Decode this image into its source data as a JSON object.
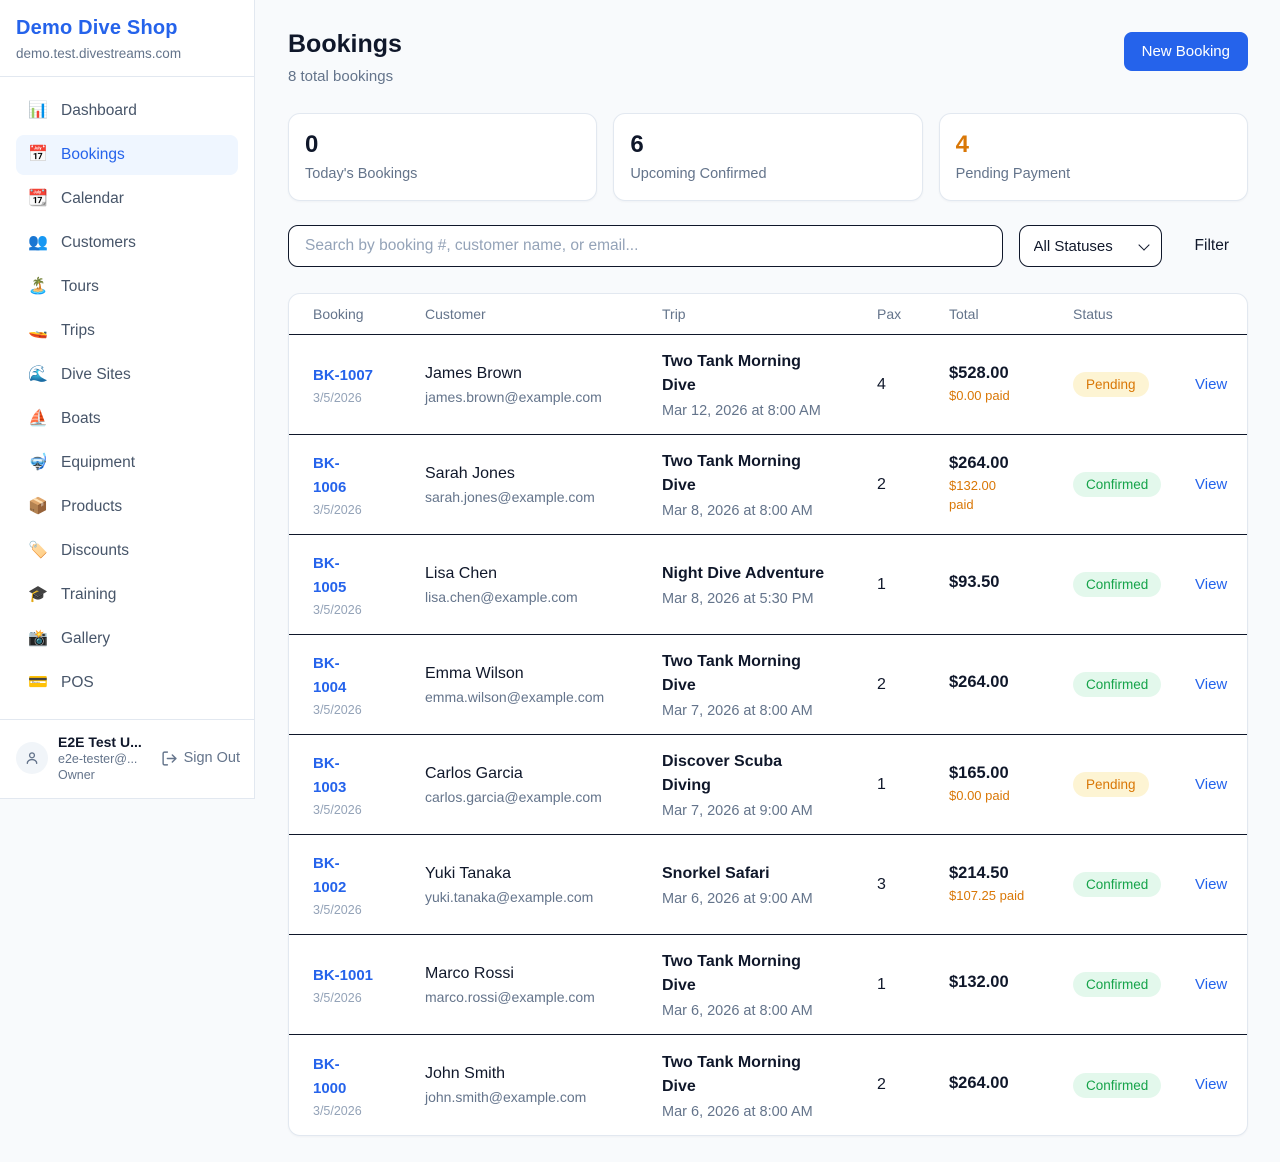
{
  "colors": {
    "accent": "#2563eb",
    "page_bg": "#f8fafc",
    "panel_bg": "#ffffff",
    "border_light": "#e2e8f0",
    "border_dark": "#0f172a",
    "text_dark": "#0f172a",
    "text_gray": "#64748b",
    "text_faint": "#94a3b8",
    "nav_text": "#475569",
    "active_bg": "#eff6ff",
    "orange": "#d97706",
    "pending_bg": "#fdf4d3",
    "green": "#16a34a",
    "confirmed_bg": "#e3f8ec"
  },
  "sidebar": {
    "shop_name": "Demo Dive Shop",
    "shop_domain": "demo.test.divestreams.com",
    "items": [
      {
        "label": "Dashboard",
        "icon": "bar-chart-icon",
        "glyph": "📊",
        "active": false
      },
      {
        "label": "Bookings",
        "icon": "calendar-date-icon",
        "glyph": "📅",
        "active": true
      },
      {
        "label": "Calendar",
        "icon": "calendar-icon",
        "glyph": "📆",
        "active": false
      },
      {
        "label": "Customers",
        "icon": "people-icon",
        "glyph": "👥",
        "active": false
      },
      {
        "label": "Tours",
        "icon": "island-icon",
        "glyph": "🏝️",
        "active": false
      },
      {
        "label": "Trips",
        "icon": "speedboat-icon",
        "glyph": "🚤",
        "active": false
      },
      {
        "label": "Dive Sites",
        "icon": "wave-icon",
        "glyph": "🌊",
        "active": false
      },
      {
        "label": "Boats",
        "icon": "sailboat-icon",
        "glyph": "⛵",
        "active": false
      },
      {
        "label": "Equipment",
        "icon": "diving-mask-icon",
        "glyph": "🤿",
        "active": false
      },
      {
        "label": "Products",
        "icon": "package-icon",
        "glyph": "📦",
        "active": false
      },
      {
        "label": "Discounts",
        "icon": "tag-icon",
        "glyph": "🏷️",
        "active": false
      },
      {
        "label": "Training",
        "icon": "graduation-cap-icon",
        "glyph": "🎓",
        "active": false
      },
      {
        "label": "Gallery",
        "icon": "camera-icon",
        "glyph": "📸",
        "active": false
      },
      {
        "label": "POS",
        "icon": "credit-card-icon",
        "glyph": "💳",
        "active": false
      }
    ],
    "user": {
      "name": "E2E Test U...",
      "email": "e2e-tester@...",
      "role": "Owner",
      "sign_out_label": "Sign Out"
    }
  },
  "header": {
    "title": "Bookings",
    "subtitle": "8 total bookings",
    "new_booking_label": "New Booking"
  },
  "stats": [
    {
      "value": "0",
      "label": "Today's Bookings"
    },
    {
      "value": "6",
      "label": "Upcoming Confirmed"
    },
    {
      "value": "4",
      "label": "Pending Payment",
      "value_color": "#d97706"
    }
  ],
  "controls": {
    "search_placeholder": "Search by booking #, customer name, or email...",
    "status_filter_value": "All Statuses",
    "filter_label": "Filter"
  },
  "table": {
    "columns": [
      "Booking",
      "Customer",
      "Trip",
      "Pax",
      "Total",
      "Status"
    ],
    "view_label": "View",
    "rows": [
      {
        "id": "BK-1007",
        "date": "3/5/2026",
        "customer_name": "James Brown",
        "customer_email": "james.brown@example.com",
        "trip_name": "Two Tank Morning\nDive",
        "trip_datetime": "Mar 12, 2026 at 8:00 AM",
        "pax": "4",
        "total": "$528.00",
        "paid": "$0.00 paid",
        "status": "Pending"
      },
      {
        "id": "BK-\n1006",
        "date": "3/5/2026",
        "customer_name": "Sarah Jones",
        "customer_email": "sarah.jones@example.com",
        "trip_name": "Two Tank Morning\nDive",
        "trip_datetime": "Mar 8, 2026 at 8:00 AM",
        "pax": "2",
        "total": "$264.00",
        "paid": "$132.00\npaid",
        "status": "Confirmed"
      },
      {
        "id": "BK-\n1005",
        "date": "3/5/2026",
        "customer_name": "Lisa Chen",
        "customer_email": "lisa.chen@example.com",
        "trip_name": "Night Dive Adventure",
        "trip_datetime": "Mar 8, 2026 at 5:30 PM",
        "pax": "1",
        "total": "$93.50",
        "paid": "",
        "status": "Confirmed"
      },
      {
        "id": "BK-\n1004",
        "date": "3/5/2026",
        "customer_name": "Emma Wilson",
        "customer_email": "emma.wilson@example.com",
        "trip_name": "Two Tank Morning\nDive",
        "trip_datetime": "Mar 7, 2026 at 8:00 AM",
        "pax": "2",
        "total": "$264.00",
        "paid": "",
        "status": "Confirmed"
      },
      {
        "id": "BK-\n1003",
        "date": "3/5/2026",
        "customer_name": "Carlos Garcia",
        "customer_email": "carlos.garcia@example.com",
        "trip_name": "Discover Scuba\nDiving",
        "trip_datetime": "Mar 7, 2026 at 9:00 AM",
        "pax": "1",
        "total": "$165.00",
        "paid": "$0.00 paid",
        "status": "Pending"
      },
      {
        "id": "BK-\n1002",
        "date": "3/5/2026",
        "customer_name": "Yuki Tanaka",
        "customer_email": "yuki.tanaka@example.com",
        "trip_name": "Snorkel Safari",
        "trip_datetime": "Mar 6, 2026 at 9:00 AM",
        "pax": "3",
        "total": "$214.50",
        "paid": "$107.25 paid",
        "status": "Confirmed"
      },
      {
        "id": "BK-1001",
        "date": "3/5/2026",
        "customer_name": "Marco Rossi",
        "customer_email": "marco.rossi@example.com",
        "trip_name": "Two Tank Morning\nDive",
        "trip_datetime": "Mar 6, 2026 at 8:00 AM",
        "pax": "1",
        "total": "$132.00",
        "paid": "",
        "status": "Confirmed"
      },
      {
        "id": "BK-\n1000",
        "date": "3/5/2026",
        "customer_name": "John Smith",
        "customer_email": "john.smith@example.com",
        "trip_name": "Two Tank Morning\nDive",
        "trip_datetime": "Mar 6, 2026 at 8:00 AM",
        "pax": "2",
        "total": "$264.00",
        "paid": "",
        "status": "Confirmed"
      }
    ]
  }
}
